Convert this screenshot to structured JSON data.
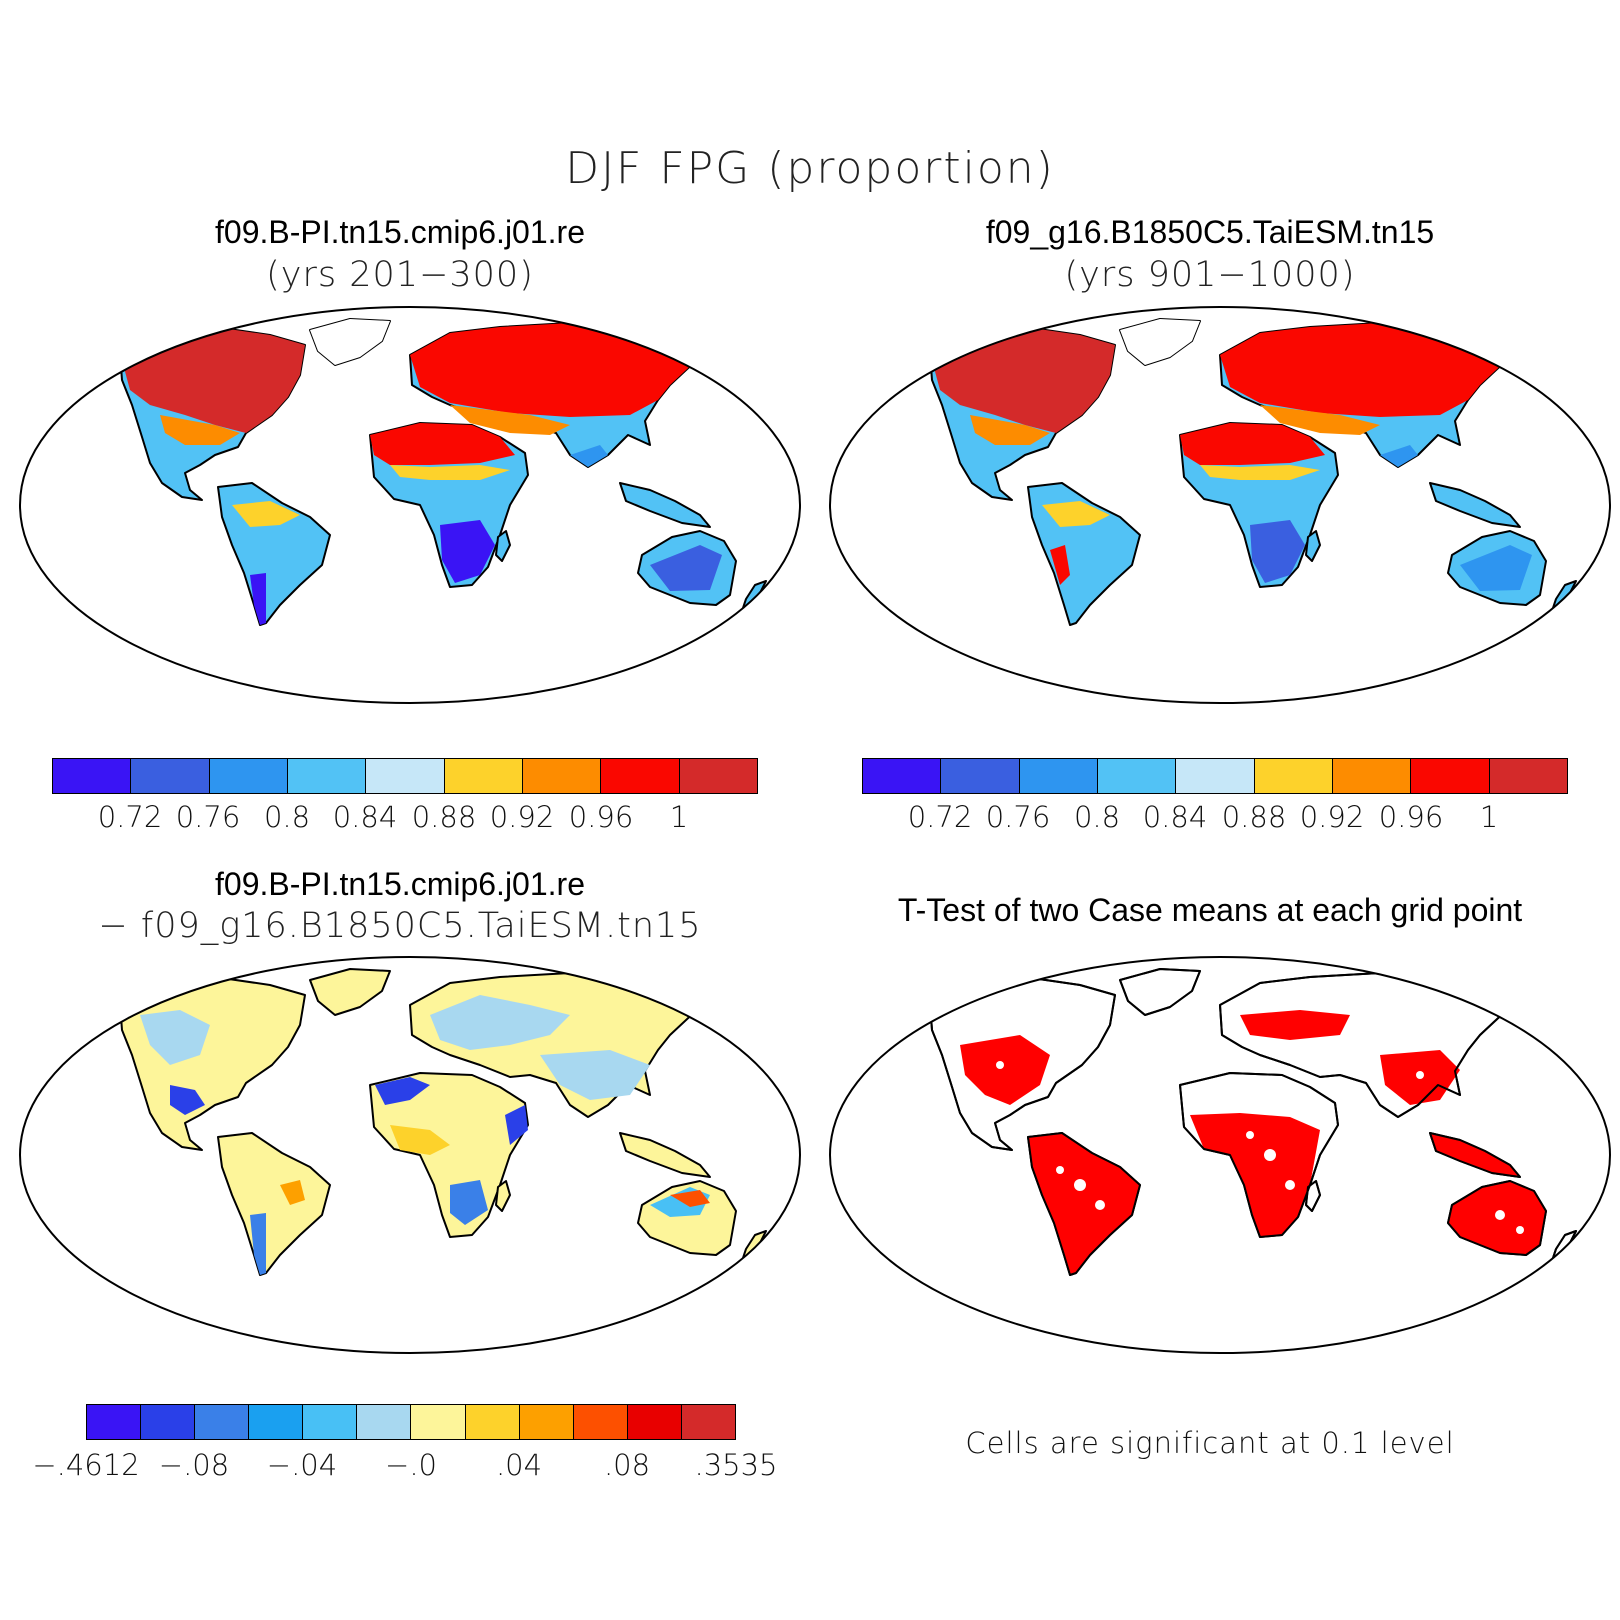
{
  "title": "DJF FPG (proportion)",
  "panels": [
    {
      "case": "f09.B-PI.tn15.cmip6.j01.re",
      "years": "(yrs 201−300)",
      "colorbar": {
        "colors": [
          "#3a14f5",
          "#3a5fe0",
          "#2e95f0",
          "#52c2f5",
          "#c6e7f8",
          "#fdd22b",
          "#fd8c00",
          "#fa0700",
          "#d42a2a"
        ],
        "ticks": [
          "0.72",
          "0.76",
          "0.8",
          "0.84",
          "0.88",
          "0.92",
          "0.96",
          "1"
        ]
      }
    },
    {
      "case": "f09_g16.B1850C5.TaiESM.tn15",
      "years": "(yrs 901−1000)",
      "colorbar": {
        "colors": [
          "#3a14f5",
          "#3a5fe0",
          "#2e95f0",
          "#52c2f5",
          "#c6e7f8",
          "#fdd22b",
          "#fd8c00",
          "#fa0700",
          "#d42a2a"
        ],
        "ticks": [
          "0.72",
          "0.76",
          "0.8",
          "0.84",
          "0.88",
          "0.92",
          "0.96",
          "1"
        ]
      }
    },
    {
      "case": "f09.B-PI.tn15.cmip6.j01.re",
      "subtitle": "− f09_g16.B1850C5.TaiESM.tn15",
      "colorbar": {
        "colors": [
          "#3a14f5",
          "#2a40e8",
          "#3a80e8",
          "#1aa0f0",
          "#48c0f5",
          "#a8d8f0",
          "#fdf59a",
          "#fdd22b",
          "#fda000",
          "#fd5000",
          "#e80000",
          "#d42a2a"
        ],
        "ticks": [
          "−.4612",
          "−.08",
          "−.04",
          "−.0",
          ".04",
          ".08",
          ".3535"
        ]
      }
    },
    {
      "case": "T-Test of two Case means at each grid point",
      "note": "Cells are significant at 0.1 level",
      "color": "#ff0000"
    }
  ]
}
